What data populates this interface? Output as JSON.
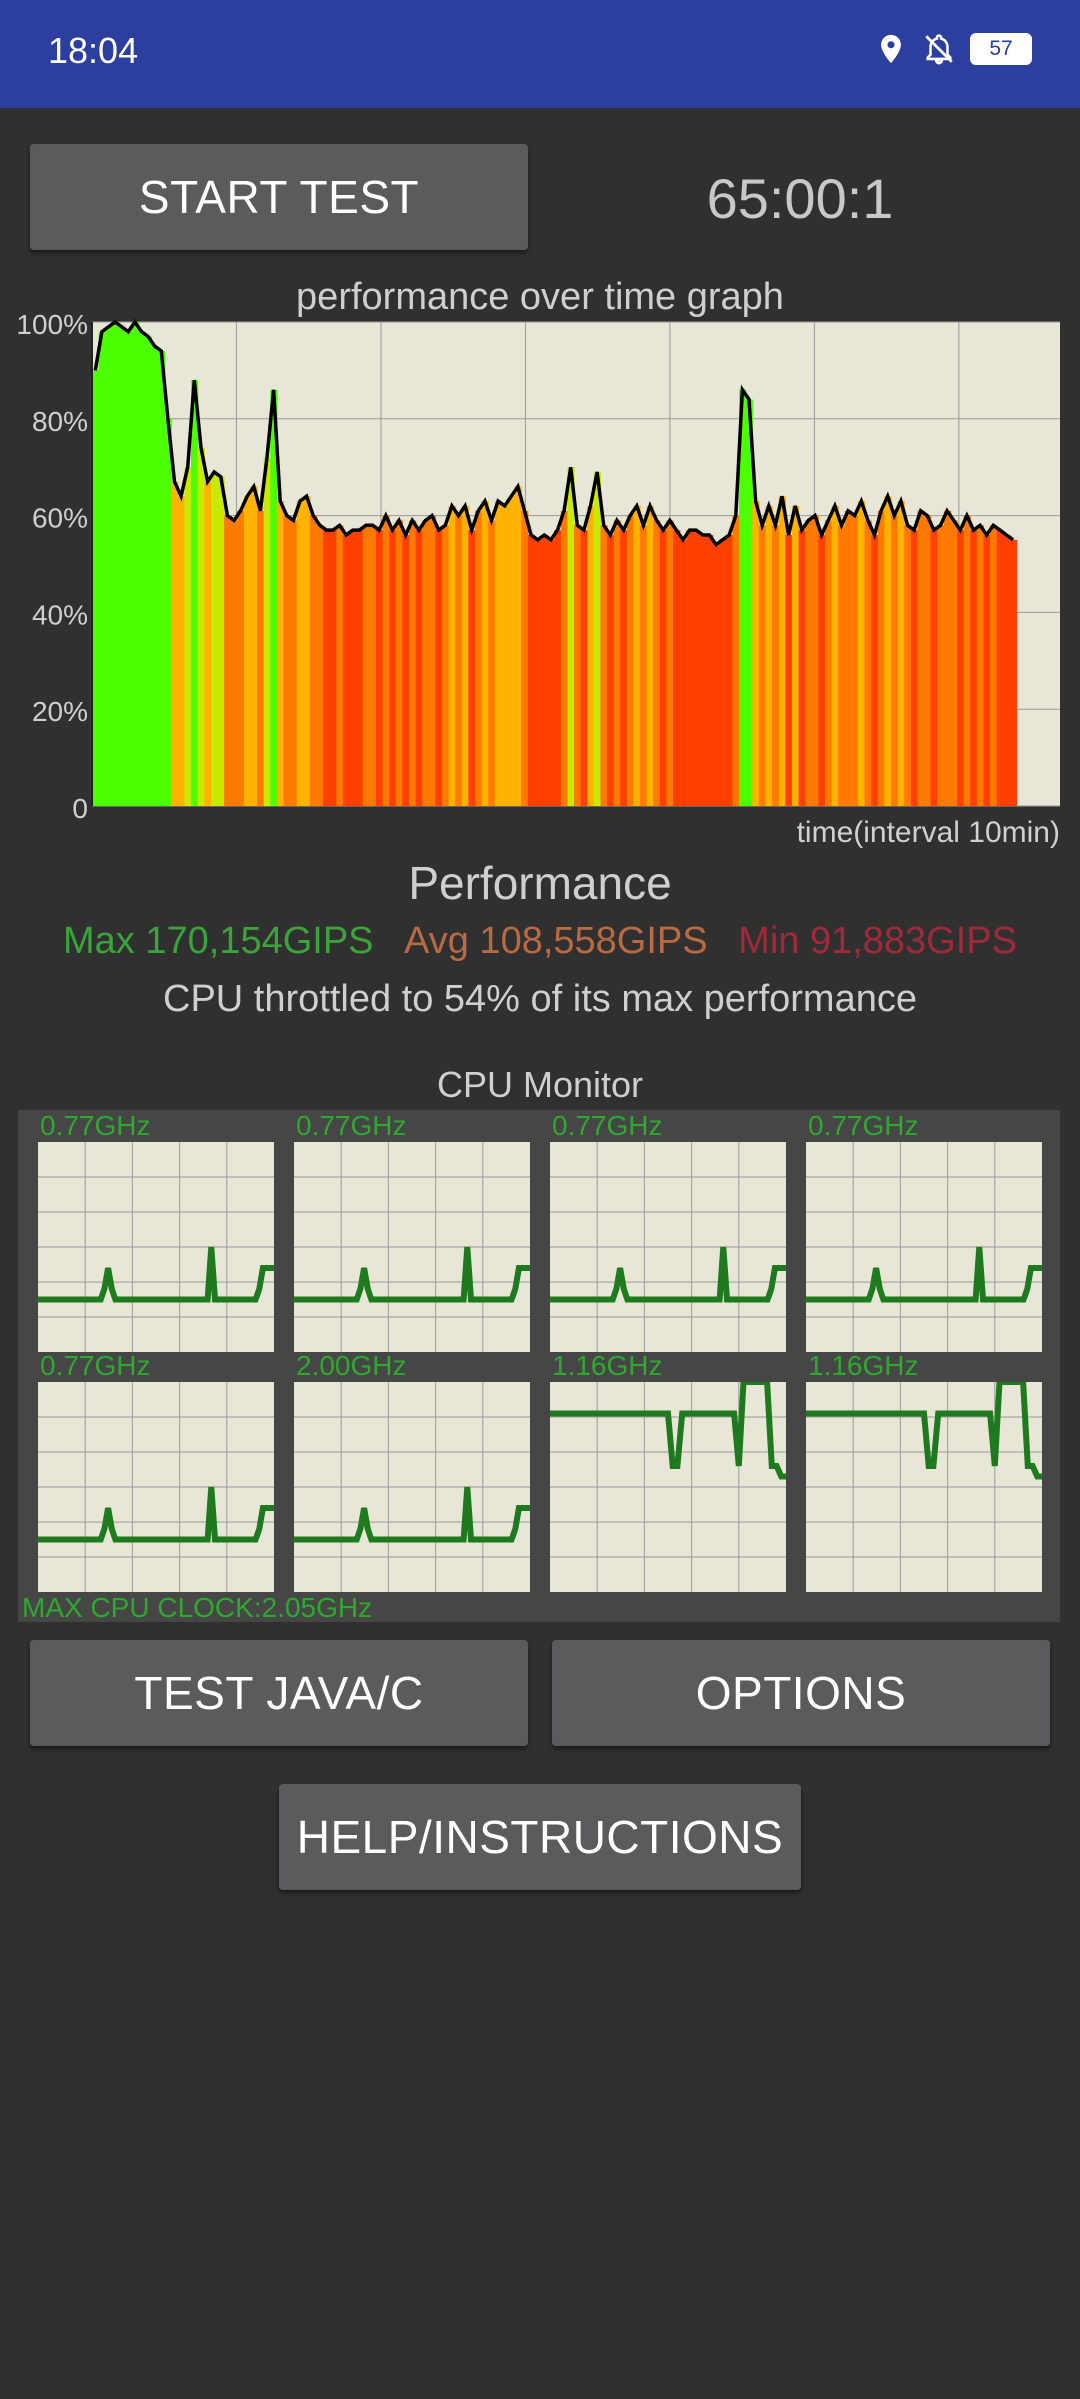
{
  "status_bar": {
    "time": "18:04",
    "battery": "57",
    "icons": [
      "location-icon",
      "notifications-off-icon",
      "battery-icon"
    ]
  },
  "controls": {
    "start_test": "START TEST",
    "timer": "65:00:1",
    "test_java_c": "TEST JAVA/C",
    "options": "OPTIONS",
    "help": "HELP/INSTRUCTIONS"
  },
  "perf_graph": {
    "title": "performance over time graph",
    "x_label": "time(interval 10min)",
    "y_ticks": [
      "100%",
      "80%",
      "60%",
      "40%",
      "20%",
      "0"
    ],
    "colors": {
      "background": "#e8e6d6",
      "line": "#000000",
      "high": "#4cff00",
      "mid": "#ffb300",
      "low": "#ff4000"
    }
  },
  "chart_data": {
    "type": "area",
    "title": "performance over time graph",
    "xlabel": "time(interval 10min)",
    "ylabel": "",
    "ylim": [
      0,
      100
    ],
    "y_ticks": [
      "100%",
      "80%",
      "60%",
      "40%",
      "20%",
      "0"
    ],
    "grid": true,
    "values": [
      90,
      98,
      99,
      100,
      99,
      98,
      100,
      98,
      97,
      95,
      94,
      80,
      67,
      64,
      70,
      88,
      74,
      67,
      69,
      68,
      60,
      59,
      61,
      64,
      66,
      61,
      72,
      86,
      63,
      60,
      59,
      63,
      64,
      60,
      58,
      57,
      57,
      58,
      56,
      57,
      57,
      58,
      58,
      57,
      60,
      57,
      59,
      56,
      59,
      57,
      59,
      60,
      57,
      58,
      62,
      60,
      62,
      57,
      61,
      63,
      59,
      63,
      62,
      64,
      66,
      61,
      56,
      55,
      56,
      55,
      57,
      61,
      70,
      58,
      57,
      62,
      69,
      58,
      56,
      59,
      57,
      60,
      62,
      58,
      62,
      59,
      57,
      59,
      57,
      55,
      57,
      57,
      56,
      56,
      54,
      55,
      56,
      60,
      86,
      84,
      63,
      58,
      62,
      58,
      64,
      56,
      62,
      57,
      59,
      60,
      56,
      59,
      62,
      58,
      61,
      60,
      63,
      59,
      56,
      61,
      64,
      60,
      63,
      58,
      57,
      61,
      60,
      57,
      58,
      61,
      59,
      57,
      60,
      57,
      58,
      56,
      58,
      57,
      56,
      55
    ]
  },
  "performance": {
    "heading": "Performance",
    "max": "Max 170,154GIPS",
    "avg": "Avg 108,558GIPS",
    "min": "Min 91,883GIPS",
    "throttle_text": "CPU throttled to 54% of its max performance",
    "colors": {
      "max": "#3aa33a",
      "avg": "#b86a42",
      "min": "#a02a3a"
    }
  },
  "cpu_monitor": {
    "title": "CPU Monitor",
    "max_clock": "MAX CPU CLOCK:2.05GHz",
    "cores": [
      {
        "freq": "0.77GHz",
        "values": [
          25,
          25,
          25,
          25,
          25,
          25,
          25,
          25,
          25,
          25,
          25,
          25,
          25,
          25,
          25,
          25,
          25,
          25,
          30,
          40,
          30,
          25,
          25,
          25,
          25,
          25,
          25,
          25,
          25,
          25,
          25,
          25,
          25,
          25,
          25,
          25,
          25,
          25,
          25,
          25,
          25,
          25,
          25,
          25,
          25,
          25,
          25,
          50,
          25,
          25,
          25,
          25,
          25,
          25,
          25,
          25,
          25,
          25,
          25,
          25,
          30,
          40,
          40,
          40,
          40
        ]
      },
      {
        "freq": "0.77GHz",
        "values": [
          25,
          25,
          25,
          25,
          25,
          25,
          25,
          25,
          25,
          25,
          25,
          25,
          25,
          25,
          25,
          25,
          25,
          25,
          30,
          40,
          30,
          25,
          25,
          25,
          25,
          25,
          25,
          25,
          25,
          25,
          25,
          25,
          25,
          25,
          25,
          25,
          25,
          25,
          25,
          25,
          25,
          25,
          25,
          25,
          25,
          25,
          25,
          50,
          25,
          25,
          25,
          25,
          25,
          25,
          25,
          25,
          25,
          25,
          25,
          25,
          30,
          40,
          40,
          40,
          40
        ]
      },
      {
        "freq": "0.77GHz",
        "values": [
          25,
          25,
          25,
          25,
          25,
          25,
          25,
          25,
          25,
          25,
          25,
          25,
          25,
          25,
          25,
          25,
          25,
          25,
          30,
          40,
          30,
          25,
          25,
          25,
          25,
          25,
          25,
          25,
          25,
          25,
          25,
          25,
          25,
          25,
          25,
          25,
          25,
          25,
          25,
          25,
          25,
          25,
          25,
          25,
          25,
          25,
          25,
          50,
          25,
          25,
          25,
          25,
          25,
          25,
          25,
          25,
          25,
          25,
          25,
          25,
          30,
          40,
          40,
          40,
          40
        ]
      },
      {
        "freq": "0.77GHz",
        "values": [
          25,
          25,
          25,
          25,
          25,
          25,
          25,
          25,
          25,
          25,
          25,
          25,
          25,
          25,
          25,
          25,
          25,
          25,
          30,
          40,
          30,
          25,
          25,
          25,
          25,
          25,
          25,
          25,
          25,
          25,
          25,
          25,
          25,
          25,
          25,
          25,
          25,
          25,
          25,
          25,
          25,
          25,
          25,
          25,
          25,
          25,
          25,
          50,
          25,
          25,
          25,
          25,
          25,
          25,
          25,
          25,
          25,
          25,
          25,
          25,
          30,
          40,
          40,
          40,
          40
        ]
      },
      {
        "freq": "0.77GHz",
        "values": [
          25,
          25,
          25,
          25,
          25,
          25,
          25,
          25,
          25,
          25,
          25,
          25,
          25,
          25,
          25,
          25,
          25,
          25,
          30,
          40,
          30,
          25,
          25,
          25,
          25,
          25,
          25,
          25,
          25,
          25,
          25,
          25,
          25,
          25,
          25,
          25,
          25,
          25,
          25,
          25,
          25,
          25,
          25,
          25,
          25,
          25,
          25,
          50,
          25,
          25,
          25,
          25,
          25,
          25,
          25,
          25,
          25,
          25,
          25,
          25,
          30,
          40,
          40,
          40,
          40
        ]
      },
      {
        "freq": "2.00GHz",
        "values": [
          25,
          25,
          25,
          25,
          25,
          25,
          25,
          25,
          25,
          25,
          25,
          25,
          25,
          25,
          25,
          25,
          25,
          25,
          30,
          40,
          30,
          25,
          25,
          25,
          25,
          25,
          25,
          25,
          25,
          25,
          25,
          25,
          25,
          25,
          25,
          25,
          25,
          25,
          25,
          25,
          25,
          25,
          25,
          25,
          25,
          25,
          25,
          50,
          25,
          25,
          25,
          25,
          25,
          25,
          25,
          25,
          25,
          25,
          25,
          25,
          30,
          40,
          40,
          40,
          40
        ]
      },
      {
        "freq": "1.16GHz",
        "values": [
          85,
          85,
          85,
          85,
          85,
          85,
          85,
          85,
          85,
          85,
          85,
          85,
          85,
          85,
          85,
          85,
          85,
          85,
          85,
          85,
          85,
          85,
          85,
          85,
          85,
          85,
          60,
          60,
          85,
          85,
          85,
          85,
          85,
          85,
          85,
          85,
          85,
          85,
          85,
          85,
          60,
          100,
          100,
          100,
          100,
          100,
          100,
          60,
          60,
          55,
          55
        ]
      },
      {
        "freq": "1.16GHz",
        "values": [
          85,
          85,
          85,
          85,
          85,
          85,
          85,
          85,
          85,
          85,
          85,
          85,
          85,
          85,
          85,
          85,
          85,
          85,
          85,
          85,
          85,
          85,
          85,
          85,
          85,
          85,
          60,
          60,
          85,
          85,
          85,
          85,
          85,
          85,
          85,
          85,
          85,
          85,
          85,
          85,
          60,
          100,
          100,
          100,
          100,
          100,
          100,
          60,
          60,
          55,
          55
        ]
      }
    ]
  }
}
